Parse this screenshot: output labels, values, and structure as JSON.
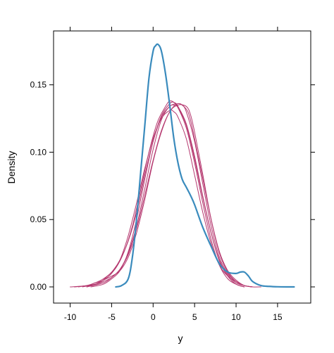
{
  "chart_data": {
    "type": "line",
    "title": "",
    "xlabel": "y",
    "ylabel": "Density",
    "xlim": [
      -12,
      19
    ],
    "ylim": [
      -0.012,
      0.19
    ],
    "x_ticks": [
      -10,
      -5,
      0,
      5,
      10,
      15
    ],
    "x_tick_labels": [
      "-10",
      "-5",
      "0",
      "5",
      "10",
      "15"
    ],
    "y_ticks": [
      0.0,
      0.05,
      0.1,
      0.15
    ],
    "y_tick_labels": [
      "0.00",
      "0.05",
      "0.10",
      "0.15"
    ],
    "grid": false,
    "legend": "none",
    "colors": {
      "observed": "#3a8bbd",
      "replicates": "#b5386f",
      "axis": "#000000"
    },
    "series": [
      {
        "role": "observed",
        "x": [
          -4.5,
          -3.8,
          -3.0,
          -2.5,
          -2.0,
          -1.5,
          -1.0,
          -0.5,
          0.0,
          0.3,
          0.6,
          1.0,
          1.5,
          2.0,
          2.5,
          3.0,
          3.5,
          4.0,
          4.5,
          5.0,
          6.0,
          7.0,
          8.0,
          9.0,
          10.0,
          10.5,
          11.0,
          11.5,
          12.0,
          13.0,
          14.0,
          15.0,
          16.0,
          17.0
        ],
        "y": [
          0.0,
          0.001,
          0.006,
          0.022,
          0.05,
          0.085,
          0.12,
          0.155,
          0.175,
          0.179,
          0.18,
          0.175,
          0.158,
          0.135,
          0.11,
          0.092,
          0.08,
          0.074,
          0.068,
          0.061,
          0.044,
          0.03,
          0.017,
          0.011,
          0.01,
          0.011,
          0.011,
          0.008,
          0.004,
          0.001,
          0.0004,
          0.0001,
          0.0,
          0.0
        ]
      },
      {
        "role": "replicate",
        "x": [
          -10.0,
          -8.0,
          -7.0,
          -6.0,
          -5.0,
          -4.0,
          -3.0,
          -2.0,
          -1.0,
          0.0,
          1.0,
          2.0,
          2.5,
          3.0,
          4.0,
          5.0,
          6.0,
          7.0,
          8.0,
          9.0,
          10.0,
          11.0,
          12.0,
          13.0
        ],
        "y": [
          0.0,
          0.001,
          0.003,
          0.005,
          0.01,
          0.02,
          0.038,
          0.062,
          0.088,
          0.11,
          0.125,
          0.131,
          0.13,
          0.126,
          0.11,
          0.083,
          0.055,
          0.032,
          0.016,
          0.008,
          0.004,
          0.001,
          0.0,
          0.0
        ]
      },
      {
        "role": "replicate",
        "x": [
          -9.0,
          -7.0,
          -6.0,
          -5.0,
          -4.0,
          -3.0,
          -2.0,
          -1.0,
          0.0,
          1.0,
          2.0,
          3.0,
          3.5,
          4.0,
          5.0,
          6.0,
          7.0,
          8.0,
          9.0,
          10.0,
          11.0,
          12.0
        ],
        "y": [
          0.0,
          0.002,
          0.004,
          0.007,
          0.013,
          0.025,
          0.045,
          0.073,
          0.102,
          0.124,
          0.134,
          0.136,
          0.135,
          0.13,
          0.108,
          0.076,
          0.045,
          0.022,
          0.01,
          0.004,
          0.001,
          0.0
        ]
      },
      {
        "role": "replicate",
        "x": [
          -8.0,
          -6.5,
          -5.5,
          -4.5,
          -3.5,
          -2.5,
          -1.5,
          -0.5,
          0.5,
          1.5,
          2.0,
          2.5,
          3.0,
          4.0,
          5.0,
          6.0,
          7.0,
          8.0,
          9.0,
          10.0,
          11.0
        ],
        "y": [
          0.0,
          0.003,
          0.008,
          0.014,
          0.026,
          0.045,
          0.072,
          0.1,
          0.122,
          0.134,
          0.138,
          0.137,
          0.133,
          0.118,
          0.092,
          0.062,
          0.035,
          0.016,
          0.006,
          0.002,
          0.0
        ]
      },
      {
        "role": "replicate",
        "x": [
          -8.5,
          -7.0,
          -6.0,
          -5.0,
          -4.0,
          -3.0,
          -2.0,
          -1.0,
          0.0,
          1.0,
          2.0,
          3.0,
          4.0,
          4.5,
          5.0,
          6.0,
          7.0,
          8.0,
          9.0,
          10.0,
          11.0,
          12.0
        ],
        "y": [
          0.0,
          0.002,
          0.005,
          0.008,
          0.012,
          0.022,
          0.04,
          0.065,
          0.093,
          0.115,
          0.13,
          0.135,
          0.134,
          0.128,
          0.115,
          0.083,
          0.05,
          0.025,
          0.011,
          0.004,
          0.001,
          0.0
        ]
      },
      {
        "role": "replicate",
        "x": [
          -9.5,
          -8.0,
          -7.0,
          -6.0,
          -5.0,
          -4.0,
          -3.0,
          -2.0,
          -1.0,
          0.0,
          1.0,
          2.0,
          2.5,
          3.0,
          4.0,
          5.0,
          6.0,
          7.0,
          8.0,
          9.0,
          10.0,
          11.0,
          12.0
        ],
        "y": [
          0.0,
          0.001,
          0.003,
          0.006,
          0.011,
          0.02,
          0.034,
          0.055,
          0.083,
          0.108,
          0.126,
          0.134,
          0.135,
          0.133,
          0.12,
          0.095,
          0.066,
          0.04,
          0.02,
          0.009,
          0.003,
          0.001,
          0.0
        ]
      },
      {
        "role": "replicate",
        "x": [
          -8.0,
          -6.0,
          -5.0,
          -4.0,
          -3.0,
          -2.0,
          -1.0,
          0.0,
          1.0,
          2.0,
          3.0,
          4.0,
          4.5,
          5.0,
          6.0,
          7.0,
          8.0,
          9.0,
          10.0,
          11.0,
          12.0
        ],
        "y": [
          0.0,
          0.003,
          0.007,
          0.013,
          0.024,
          0.043,
          0.068,
          0.094,
          0.116,
          0.13,
          0.136,
          0.132,
          0.124,
          0.11,
          0.08,
          0.05,
          0.026,
          0.012,
          0.005,
          0.001,
          0.0
        ]
      },
      {
        "role": "replicate",
        "x": [
          -7.5,
          -6.0,
          -5.0,
          -4.0,
          -3.0,
          -2.0,
          -1.0,
          0.0,
          1.0,
          2.0,
          2.5,
          3.0,
          4.0,
          5.0,
          6.0,
          7.0,
          8.0,
          9.0,
          10.0,
          11.0
        ],
        "y": [
          0.0,
          0.002,
          0.006,
          0.012,
          0.026,
          0.05,
          0.08,
          0.108,
          0.127,
          0.136,
          0.137,
          0.134,
          0.121,
          0.097,
          0.067,
          0.04,
          0.019,
          0.008,
          0.002,
          0.0
        ]
      }
    ]
  }
}
